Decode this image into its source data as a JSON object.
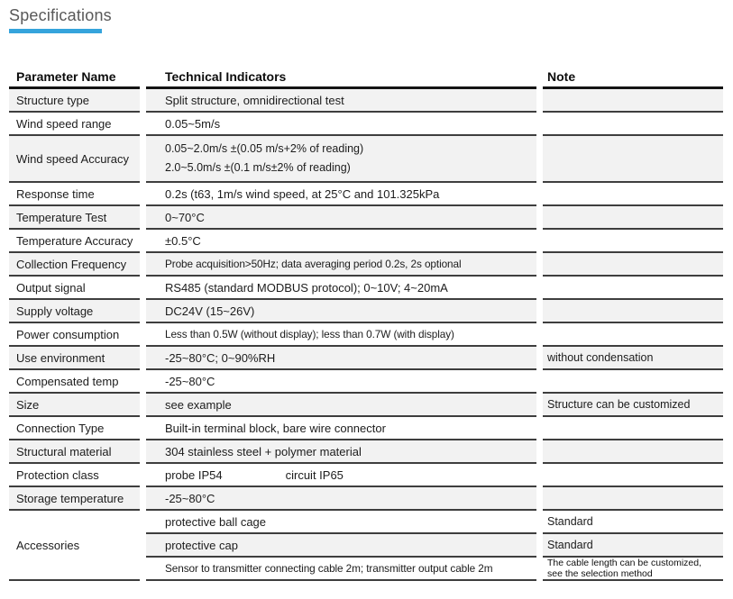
{
  "page": {
    "title": "Specifications"
  },
  "accent_color": "#35a4dc",
  "table": {
    "columns": [
      {
        "label": "Parameter Name"
      },
      {
        "label": "Technical Indicators"
      },
      {
        "label": "Note"
      }
    ],
    "rows": [
      {
        "param": "Structure type",
        "value": "Split structure, omnidirectional test",
        "note": ""
      },
      {
        "param": "Wind speed range",
        "value": "0.05~5m/s",
        "note": ""
      },
      {
        "param": "Wind speed Accuracy",
        "value_lines": [
          "0.05~2.0m/s ±(0.05 m/s+2% of reading)",
          "2.0~5.0m/s ±(0.1 m/s±2% of reading)"
        ],
        "note": ""
      },
      {
        "param": "Response time",
        "value": "0.2s (t63, 1m/s wind speed, at 25°C and 101.325kPa",
        "note": ""
      },
      {
        "param": "Temperature Test",
        "value": "0~70°C",
        "note": ""
      },
      {
        "param": "Temperature Accuracy",
        "value": "±0.5°C",
        "note": ""
      },
      {
        "param": "Collection Frequency",
        "value": "Probe acquisition>50Hz; data averaging period 0.2s, 2s optional",
        "note": ""
      },
      {
        "param": "Output signal",
        "value": "RS485 (standard MODBUS protocol); 0~10V; 4~20mA",
        "note": ""
      },
      {
        "param": "Supply voltage",
        "value": "DC24V (15~26V)",
        "note": ""
      },
      {
        "param": "Power consumption",
        "value": "Less than 0.5W (without display); less than 0.7W (with display)",
        "note": ""
      },
      {
        "param": "Use environment",
        "value": "-25~80°C;  0~90%RH",
        "note": "without condensation"
      },
      {
        "param": "Compensated temp",
        "value": "-25~80°C",
        "note": ""
      },
      {
        "param": "Size",
        "value": "see example",
        "note": "Structure can be customized"
      },
      {
        "param": "Connection Type",
        "value": "Built-in terminal block, bare wire connector",
        "note": ""
      },
      {
        "param": "Structural material",
        "value": "304 stainless steel + polymer material",
        "note": ""
      },
      {
        "param": "Protection class",
        "value_parts": [
          "probe  IP54",
          "circuit  IP65"
        ],
        "note": ""
      },
      {
        "param": "Storage temperature",
        "value": "-25~80°C",
        "note": ""
      },
      {
        "param": "Accessories",
        "param_rowspan": 3,
        "value": "protective ball cage",
        "note": "Standard"
      },
      {
        "value": "protective cap",
        "note": "Standard"
      },
      {
        "value": "Sensor to transmitter connecting cable 2m; transmitter output cable 2m",
        "note": "The cable length can be customized, see the selection method",
        "note_small": true
      }
    ]
  }
}
